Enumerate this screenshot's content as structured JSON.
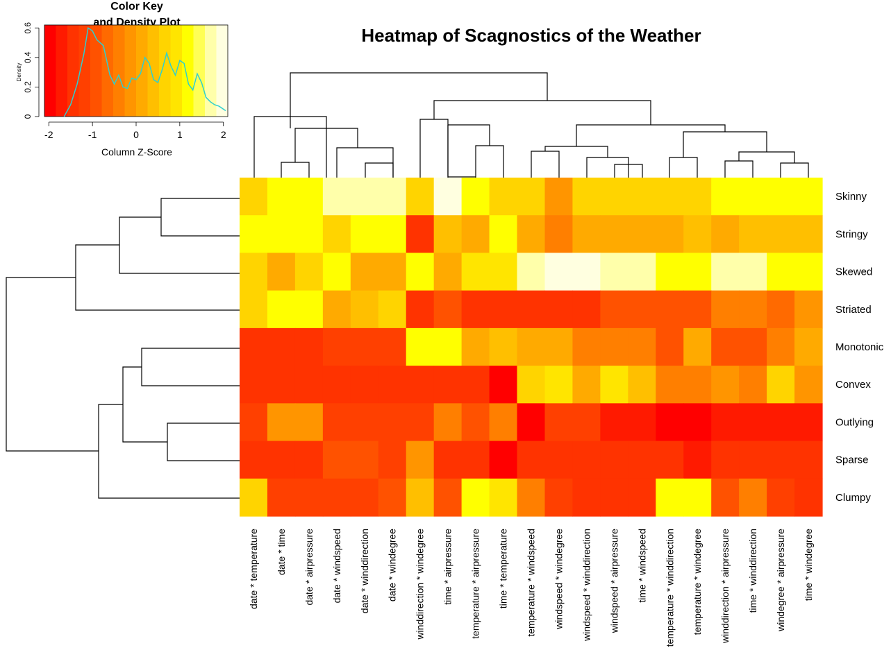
{
  "chart_data": [
    {
      "type": "heatmap",
      "title": "Heatmap of Scagnostics of the Weather",
      "rows": [
        "Skinny",
        "Stringy",
        "Skewed",
        "Striated",
        "Monotonic",
        "Convex",
        "Outlying",
        "Sparse",
        "Clumpy"
      ],
      "columns": [
        "date * temperature",
        "date * time",
        "date * airpressure",
        "date * windspeed",
        "date * winddirection",
        "date * windegree",
        "winddirection * windegree",
        "time * airpressure",
        "temperature * airpressure",
        "time * temperature",
        "temperature * windspeed",
        "windspeed * windegree",
        "windspeed * winddirection",
        "windspeed * airpressure",
        "time * windspeed",
        "temperature * winddirection",
        "temperature * windegree",
        "winddirection * airpressure",
        "time * winddirection",
        "windegree * airpressure",
        "time * windegree"
      ],
      "column_labels": [
        "date * temperature",
        "date * time",
        "date * airpressure",
        "date * windspeed",
        "date * winddirection",
        "date * windegree",
        "winddirection * windegree",
        "time * airpressure",
        "temperature * airpressure",
        "time * temperature",
        "temperature * windspeed",
        "windspeed * windegree",
        "windspeed * winddirection",
        "windspeed * airpressure",
        "time * windspeed",
        "temperature * winddirection",
        "temperature * windegree",
        "winddirection * airpressure",
        "time * winddirection",
        "windegree * airpressure",
        "time * windegree"
      ],
      "z_scores": [
        [
          0.6,
          1.0,
          1.0,
          1.5,
          1.5,
          1.5,
          0.6,
          2.0,
          1.0,
          0.6,
          0.6,
          -0.1,
          0.6,
          0.6,
          0.6,
          0.6,
          0.6,
          1.2,
          1.2,
          1.0,
          1.0
        ],
        [
          1.0,
          1.0,
          1.0,
          0.6,
          1.0,
          1.0,
          -1.3,
          0.4,
          0.1,
          1.0,
          0.1,
          -0.5,
          0.1,
          0.1,
          0.1,
          0.1,
          0.4,
          0.1,
          0.4,
          0.4,
          0.4
        ],
        [
          0.6,
          0.1,
          0.6,
          1.0,
          0.1,
          0.1,
          1.2,
          0.1,
          0.8,
          0.8,
          1.7,
          2.0,
          2.0,
          1.5,
          1.5,
          1.2,
          1.0,
          1.5,
          1.5,
          1.2,
          1.2
        ],
        [
          0.6,
          1.0,
          1.0,
          0.1,
          0.3,
          0.7,
          -1.3,
          -1.0,
          -1.3,
          -1.3,
          -1.3,
          -1.5,
          -1.5,
          -1.0,
          -0.8,
          -1.0,
          -1.0,
          -0.3,
          -0.3,
          -0.6,
          -0.2
        ],
        [
          -1.4,
          -1.4,
          -1.4,
          -1.2,
          -1.2,
          -1.2,
          1.1,
          1.1,
          0.1,
          0.3,
          0.1,
          0.1,
          -0.5,
          -0.5,
          -0.5,
          -1.0,
          0.1,
          -0.8,
          -0.8,
          -0.3,
          0.2
        ],
        [
          -1.4,
          -1.4,
          -1.4,
          -1.3,
          -1.3,
          -1.5,
          -1.5,
          -1.5,
          -1.5,
          -1.8,
          0.5,
          0.8,
          0.1,
          0.8,
          0.4,
          -0.3,
          -0.4,
          -0.2,
          -0.5,
          0.5,
          -0.2
        ],
        [
          -1.2,
          -0.2,
          -0.2,
          -1.1,
          -1.1,
          -1.1,
          -1.1,
          -0.4,
          -0.8,
          -0.5,
          -1.8,
          -1.1,
          -1.1,
          -1.6,
          -1.6,
          -1.8,
          -2.0,
          -1.7,
          -1.7,
          -1.7,
          -1.7
        ],
        [
          -1.5,
          -1.5,
          -1.5,
          -1.0,
          -1.0,
          -1.2,
          -0.2,
          -1.4,
          -1.4,
          -1.8,
          -1.5,
          -1.3,
          -1.3,
          -1.3,
          -1.5,
          -1.5,
          -1.7,
          -1.3,
          -1.5,
          -1.5,
          -1.5
        ],
        [
          0.7,
          -1.2,
          -1.2,
          -1.2,
          -1.2,
          -1.0,
          0.4,
          -1.0,
          1.2,
          0.8,
          -0.5,
          -1.2,
          -1.5,
          -1.5,
          -1.5,
          1.0,
          1.0,
          -1.0,
          -0.3,
          -1.2,
          -1.5
        ]
      ],
      "color_key": {
        "title": "Color Key",
        "subtitle": "and Density Plot",
        "xlabel": "Column Z-Score",
        "ylabel": "Density",
        "x_ticks": [
          "-2",
          "-1",
          "0",
          "1",
          "2"
        ],
        "y_ticks": [
          "0",
          "0.2",
          "0.4",
          "0.6"
        ],
        "xlim": [
          -2.1,
          2.1
        ],
        "ylim": [
          0,
          0.62
        ],
        "colors": [
          "#ff0000",
          "#ff1a00",
          "#ff3300",
          "#ff4000",
          "#ff5200",
          "#ff6a00",
          "#ff7f00",
          "#ff9500",
          "#ffaa00",
          "#ffbf00",
          "#ffd400",
          "#ffe500",
          "#ffff00",
          "#ffff55",
          "#ffffaa",
          "#ffffe0"
        ],
        "density": {
          "x": [
            -1.65,
            -1.5,
            -1.35,
            -1.2,
            -1.1,
            -1.0,
            -0.9,
            -0.75,
            -0.6,
            -0.5,
            -0.4,
            -0.3,
            -0.2,
            -0.1,
            0.0,
            0.1,
            0.2,
            0.3,
            0.4,
            0.5,
            0.6,
            0.7,
            0.8,
            0.9,
            1.0,
            1.1,
            1.2,
            1.3,
            1.4,
            1.5,
            1.6,
            1.7,
            1.8,
            1.9,
            2.05
          ],
          "y": [
            0.0,
            0.08,
            0.22,
            0.42,
            0.6,
            0.58,
            0.52,
            0.48,
            0.28,
            0.22,
            0.28,
            0.2,
            0.19,
            0.26,
            0.25,
            0.29,
            0.4,
            0.36,
            0.25,
            0.23,
            0.32,
            0.43,
            0.34,
            0.28,
            0.38,
            0.36,
            0.22,
            0.18,
            0.29,
            0.23,
            0.13,
            0.1,
            0.08,
            0.07,
            0.04
          ]
        }
      },
      "palette": {
        "density_line": "#2fcfcf",
        "dendrogram": "#000000"
      }
    }
  ]
}
